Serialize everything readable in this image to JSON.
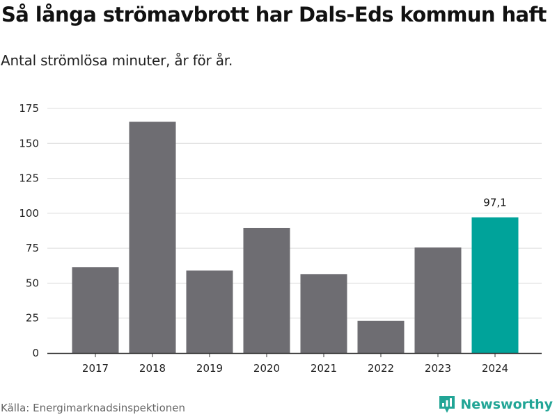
{
  "title": "Så långa strömavbrott har Dals-Eds kommun haft",
  "subtitle": "Antal strömlösa minuter, år för år.",
  "source": "Källa: Energimarknadsinspektionen",
  "brand": {
    "name": "Newsworthy",
    "icon": "newsworthy-logo-icon"
  },
  "colors": {
    "bar": "#6e6d72",
    "highlight": "#00a39a",
    "grid": "#dcdcdc",
    "axis": "#333333",
    "brand": "#22a596"
  },
  "chart_data": {
    "type": "bar",
    "title": "Så långa strömavbrott har Dals-Eds kommun haft",
    "subtitle": "Antal strömlösa minuter, år för år.",
    "xlabel": "",
    "ylabel": "",
    "categories": [
      "2017",
      "2018",
      "2019",
      "2020",
      "2021",
      "2022",
      "2023",
      "2024"
    ],
    "values": [
      61.5,
      165.5,
      59,
      89.5,
      56.5,
      23,
      75.5,
      97.1
    ],
    "highlight_index": 7,
    "data_labels": [
      {
        "index": 7,
        "text": "97,1"
      }
    ],
    "yticks": [
      0,
      25,
      50,
      75,
      100,
      125,
      150,
      175
    ],
    "ylim": [
      0,
      175
    ],
    "grid": true
  }
}
